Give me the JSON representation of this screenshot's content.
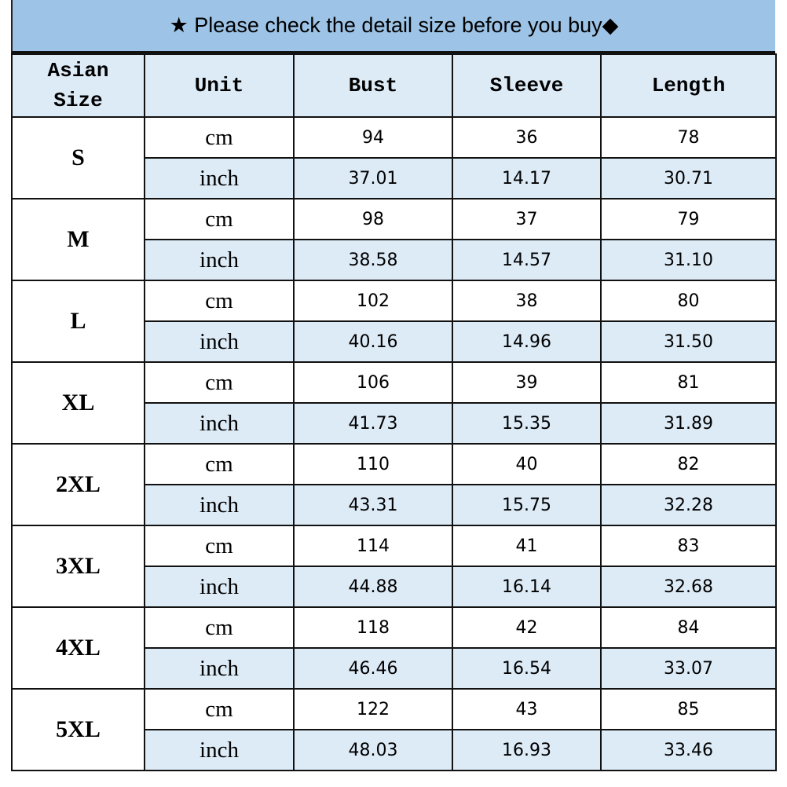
{
  "title": "★ Please check the detail size before you buy◆",
  "headers": {
    "size_line1": "Asian",
    "size_line2": "Size",
    "unit": "Unit",
    "bust": "Bust",
    "sleeve": "Sleeve",
    "length": "Length"
  },
  "colors": {
    "title_bg": "#9dc3e6",
    "header_bg": "#ddebf7",
    "inch_row_bg": "#ddebf7"
  },
  "rows": [
    {
      "size": "S",
      "cm": {
        "unit": "cm",
        "bust": "94",
        "sleeve": "36",
        "length": "78"
      },
      "inch": {
        "unit": "inch",
        "bust": "37.01",
        "sleeve": "14.17",
        "length": "30.71"
      }
    },
    {
      "size": "M",
      "cm": {
        "unit": "cm",
        "bust": "98",
        "sleeve": "37",
        "length": "79"
      },
      "inch": {
        "unit": "inch",
        "bust": "38.58",
        "sleeve": "14.57",
        "length": "31.10"
      }
    },
    {
      "size": "L",
      "cm": {
        "unit": "cm",
        "bust": "102",
        "sleeve": "38",
        "length": "80"
      },
      "inch": {
        "unit": "inch",
        "bust": "40.16",
        "sleeve": "14.96",
        "length": "31.50"
      }
    },
    {
      "size": "XL",
      "cm": {
        "unit": "cm",
        "bust": "106",
        "sleeve": "39",
        "length": "81"
      },
      "inch": {
        "unit": "inch",
        "bust": "41.73",
        "sleeve": "15.35",
        "length": "31.89"
      }
    },
    {
      "size": "2XL",
      "cm": {
        "unit": "cm",
        "bust": "110",
        "sleeve": "40",
        "length": "82"
      },
      "inch": {
        "unit": "inch",
        "bust": "43.31",
        "sleeve": "15.75",
        "length": "32.28"
      }
    },
    {
      "size": "3XL",
      "cm": {
        "unit": "cm",
        "bust": "114",
        "sleeve": "41",
        "length": "83"
      },
      "inch": {
        "unit": "inch",
        "bust": "44.88",
        "sleeve": "16.14",
        "length": "32.68"
      }
    },
    {
      "size": "4XL",
      "cm": {
        "unit": "cm",
        "bust": "118",
        "sleeve": "42",
        "length": "84"
      },
      "inch": {
        "unit": "inch",
        "bust": "46.46",
        "sleeve": "16.54",
        "length": "33.07"
      }
    },
    {
      "size": "5XL",
      "cm": {
        "unit": "cm",
        "bust": "122",
        "sleeve": "43",
        "length": "85"
      },
      "inch": {
        "unit": "inch",
        "bust": "48.03",
        "sleeve": "16.93",
        "length": "33.46"
      }
    }
  ]
}
